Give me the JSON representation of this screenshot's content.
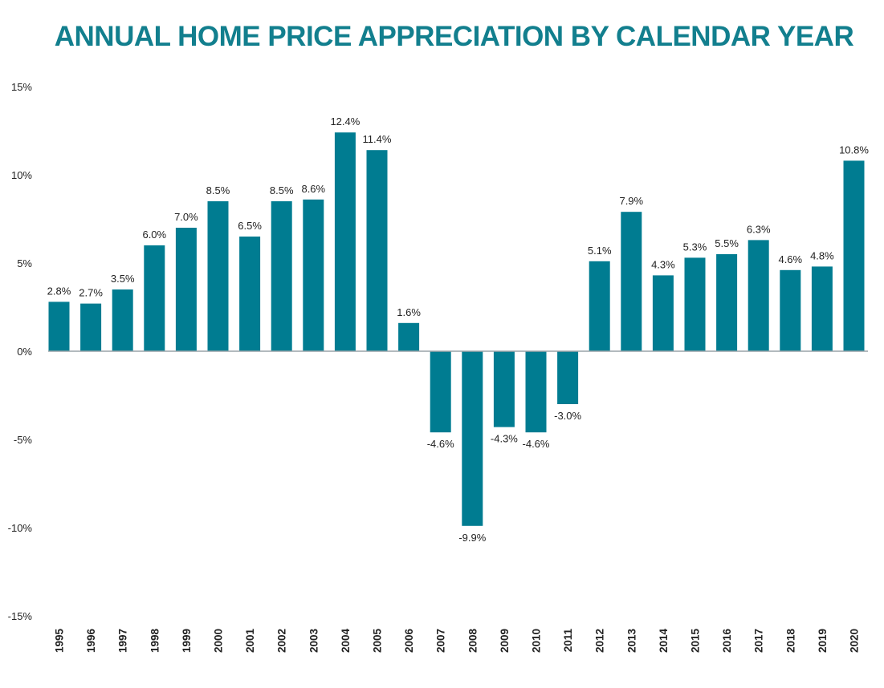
{
  "chart_data": {
    "type": "bar",
    "title": "ANNUAL HOME PRICE APPRECIATION BY CALENDAR YEAR",
    "xlabel": "",
    "ylabel": "",
    "ylim": [
      -15,
      15
    ],
    "yticks": [
      {
        "value": 15,
        "label": "15%"
      },
      {
        "value": 10,
        "label": "10%"
      },
      {
        "value": 5,
        "label": "5%"
      },
      {
        "value": 0,
        "label": "0%"
      },
      {
        "value": -5,
        "label": "-5%"
      },
      {
        "value": -10,
        "label": "-10%"
      },
      {
        "value": -15,
        "label": "-15%"
      }
    ],
    "grid": false,
    "legend": "none",
    "bar_color": "#007c91",
    "title_color": "#127f8e",
    "categories": [
      "1995",
      "1996",
      "1997",
      "1998",
      "1999",
      "2000",
      "2001",
      "2002",
      "2003",
      "2004",
      "2005",
      "2006",
      "2007",
      "2008",
      "2009",
      "2010",
      "2011",
      "2012",
      "2013",
      "2014",
      "2015",
      "2016",
      "2017",
      "2018",
      "2019",
      "2020"
    ],
    "values": [
      2.8,
      2.7,
      3.5,
      6.0,
      7.0,
      8.5,
      6.5,
      8.5,
      8.6,
      12.4,
      11.4,
      1.6,
      -4.6,
      -9.9,
      -4.3,
      -4.6,
      -3.0,
      5.1,
      7.9,
      4.3,
      5.3,
      5.5,
      6.3,
      4.6,
      4.8,
      10.8
    ],
    "labels": [
      "2.8%",
      "2.7%",
      "3.5%",
      "6.0%",
      "7.0%",
      "8.5%",
      "6.5%",
      "8.5%",
      "8.6%",
      "12.4%",
      "11.4%",
      "1.6%",
      "-4.6%",
      "-9.9%",
      "-4.3%",
      "-4.6%",
      "-3.0%",
      "5.1%",
      "7.9%",
      "4.3%",
      "5.3%",
      "5.5%",
      "6.3%",
      "4.6%",
      "4.8%",
      "10.8%"
    ]
  }
}
